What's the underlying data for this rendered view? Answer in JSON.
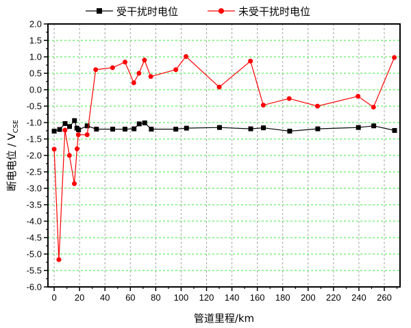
{
  "chart_data": {
    "type": "line",
    "title": "",
    "xlabel": "管道里程/km",
    "ylabel": "断电电位 / V",
    "ylabel_subscript": "CSE",
    "xlim": [
      -4.9,
      272.4
    ],
    "ylim": [
      -6.0,
      2.0
    ],
    "xticks": [
      0,
      20,
      40,
      60,
      80,
      100,
      120,
      140,
      160,
      180,
      200,
      220,
      240,
      260
    ],
    "yticks": [
      "2.0",
      "1.5",
      "1.0",
      "0.5",
      "0.0",
      "-0.5",
      "-1.0",
      "-1.5",
      "-2.0",
      "-2.5",
      "-3.0",
      "-3.5",
      "-4.0",
      "-4.5",
      "-5.0",
      "-5.5",
      "-6.0"
    ],
    "grid": {
      "x": true,
      "x_color": "#a0a0a0",
      "y": true,
      "y_color": "#33ee33"
    },
    "legend_position": "top",
    "series": [
      {
        "name": "受干扰时电位",
        "color": "#000000",
        "marker": "square",
        "x": [
          0,
          4.3,
          8.6,
          12.1,
          16,
          17.9,
          19.2,
          26,
          33.3,
          46.1,
          55.8,
          62.9,
          67,
          71.3,
          76.5,
          95.8,
          104.2,
          130.2,
          154.8,
          164.8,
          185.5,
          207.6,
          239.6,
          251.7,
          268.1
        ],
        "y": [
          -1.26,
          -1.21,
          -1.03,
          -1.12,
          -0.94,
          -1.17,
          -1.22,
          -1.1,
          -1.2,
          -1.2,
          -1.2,
          -1.19,
          -1.04,
          -1.01,
          -1.2,
          -1.2,
          -1.17,
          -1.15,
          -1.19,
          -1.16,
          -1.26,
          -1.19,
          -1.15,
          -1.1,
          -1.24
        ]
      },
      {
        "name": "未受干扰时电位",
        "color": "#ff0000",
        "marker": "circle",
        "x": [
          0,
          3.7,
          8.5,
          12,
          15.9,
          18,
          19,
          26,
          32.7,
          46,
          55.8,
          62.7,
          66.8,
          71.1,
          76.1,
          95.8,
          103.8,
          130,
          154.6,
          164.7,
          185.1,
          207.4,
          239.3,
          251.5,
          267.9
        ],
        "y": [
          -1.81,
          -5.17,
          -1.23,
          -2.0,
          -2.86,
          -1.8,
          -1.37,
          -1.37,
          0.61,
          0.67,
          0.84,
          0.21,
          0.5,
          0.9,
          0.4,
          0.61,
          1.01,
          0.08,
          0.87,
          -0.47,
          -0.27,
          -0.5,
          -0.2,
          -0.53,
          0.98
        ]
      }
    ]
  }
}
